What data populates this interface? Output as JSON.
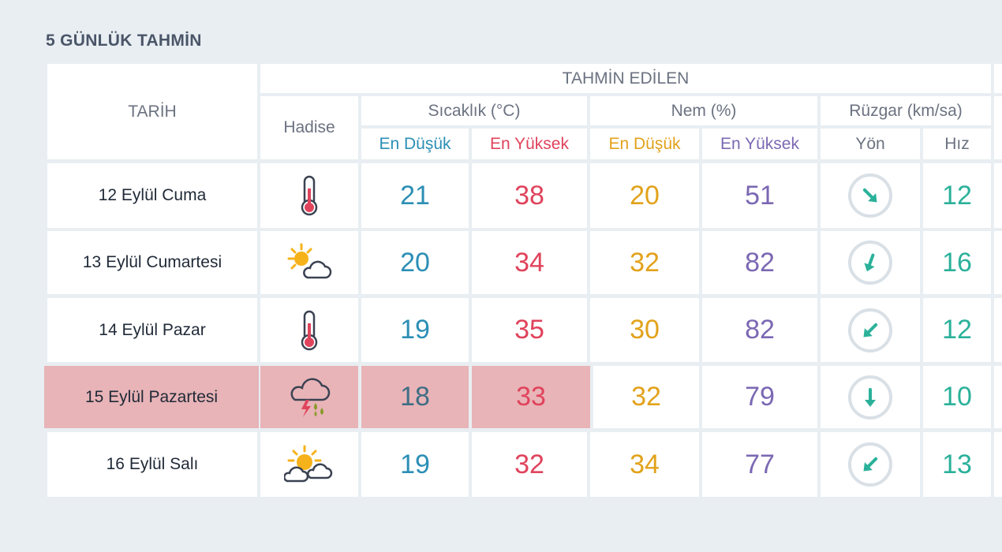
{
  "page_title": "5 GÜNLÜK TAHMİN",
  "header": {
    "date_col": "TARİH",
    "forecast_group": "TAHMİN EDİLEN",
    "event_col": "Hadise",
    "temp_group": "Sıcaklık (°C)",
    "humidity_group": "Nem (%)",
    "wind_group": "Rüzgar (km/sa)",
    "temp_min": "En Düşük",
    "temp_max": "En Yüksek",
    "hum_min": "En Düşük",
    "hum_max": "En Yüksek",
    "wind_dir": "Yön",
    "wind_speed": "Hız"
  },
  "rows": [
    {
      "date": "12 Eylül Cuma",
      "icon": "thermometer-icon",
      "temp_min": "21",
      "temp_max": "38",
      "hum_min": "20",
      "hum_max": "51",
      "wind_dir_deg": 135,
      "wind_speed": "12",
      "highlighted": false
    },
    {
      "date": "13 Eylül Cumartesi",
      "icon": "partly-cloudy-icon",
      "temp_min": "20",
      "temp_max": "34",
      "hum_min": "32",
      "hum_max": "82",
      "wind_dir_deg": 200,
      "wind_speed": "16",
      "highlighted": false
    },
    {
      "date": "14 Eylül Pazar",
      "icon": "thermometer-icon",
      "temp_min": "19",
      "temp_max": "35",
      "hum_min": "30",
      "hum_max": "82",
      "wind_dir_deg": 225,
      "wind_speed": "12",
      "highlighted": false
    },
    {
      "date": "15 Eylül Pazartesi",
      "icon": "thunderstorm-rain-icon",
      "temp_min": "18",
      "temp_max": "33",
      "hum_min": "32",
      "hum_max": "79",
      "wind_dir_deg": 180,
      "wind_speed": "10",
      "highlighted": true
    },
    {
      "date": "16 Eylül Salı",
      "icon": "sun-behind-clouds-icon",
      "temp_min": "19",
      "temp_max": "32",
      "hum_min": "34",
      "hum_max": "77",
      "wind_dir_deg": 225,
      "wind_speed": "13",
      "highlighted": false
    }
  ],
  "colors": {
    "temp_min": "#2c8fb5",
    "temp_max": "#e0435c",
    "hum_min": "#e2a21b",
    "hum_max": "#7b68b3",
    "wind": "#2bb19a",
    "highlight": "#e8b4b7"
  }
}
